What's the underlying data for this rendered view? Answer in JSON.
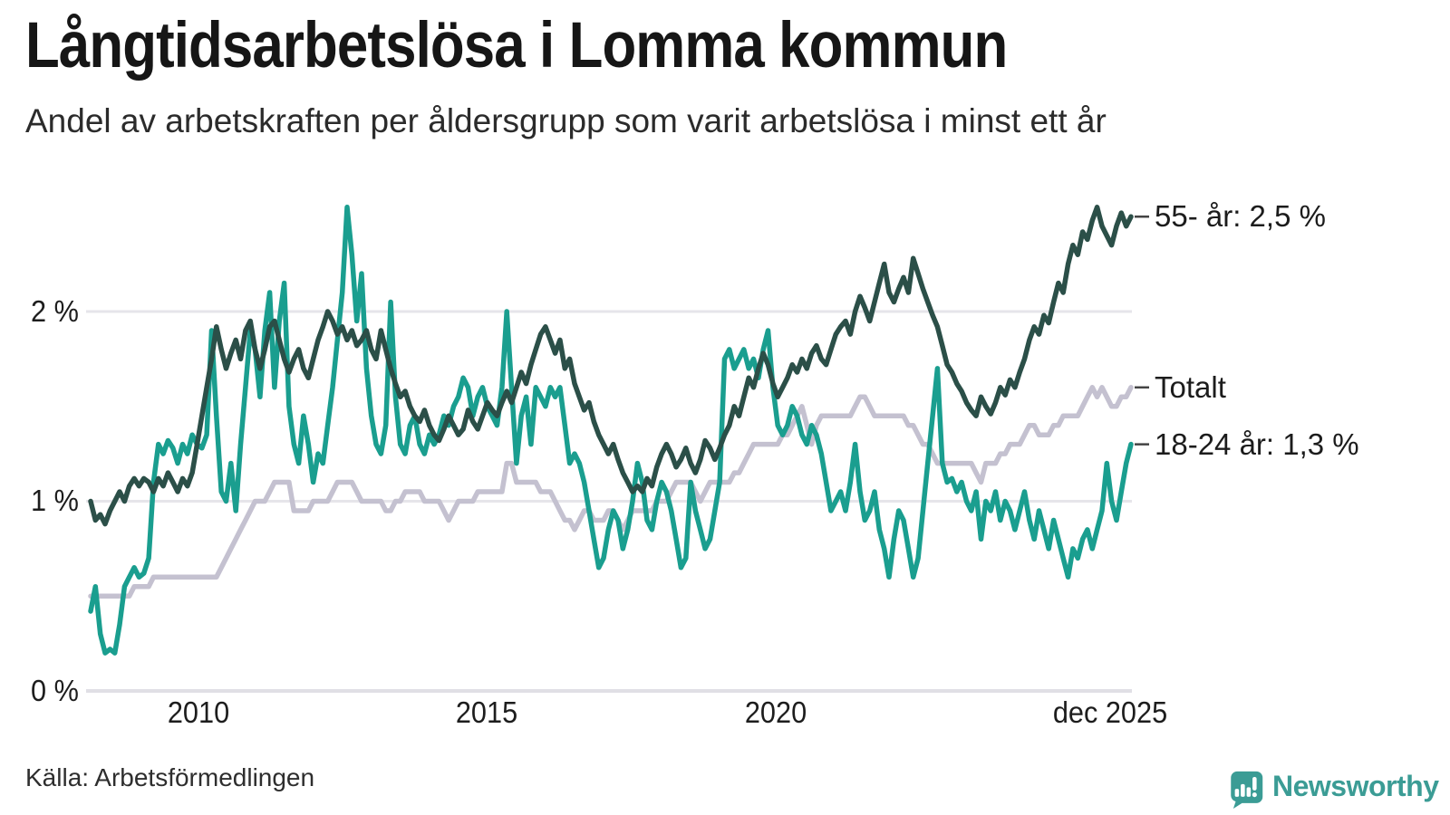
{
  "header": {
    "title": "Långtidsarbetslösa i Lomma kommun",
    "subtitle": "Andel av arbetskraften per åldersgrupp som varit arbetslösa i minst ett år"
  },
  "footer": {
    "source": "Källa: Arbetsförmedlingen",
    "brand": "Newsworthy"
  },
  "colors": {
    "series_55": "#2b4f48",
    "series_total": "#c4c1d0",
    "series_1824": "#1a9e8f",
    "gridline": "#e6e5ea",
    "zeroline": "#e0dfe5",
    "label_dash": "#444444",
    "brand_teal": "#3b9c95"
  },
  "chart_data": {
    "type": "line",
    "title": "Långtidsarbetslösa i Lomma kommun",
    "subtitle": "Andel av arbetskraften per åldersgrupp som varit arbetslösa i minst ett år",
    "unit": "%",
    "x_start": "2008-01",
    "x_end": "2025-12",
    "x_interval": "monthly",
    "ylim": [
      0,
      2.65
    ],
    "grid": "horizontal",
    "y_ticks": [
      "0 %",
      "1 %",
      "2 %"
    ],
    "y_tick_values": [
      0,
      1,
      2
    ],
    "x_tick_labels": [
      "2010",
      "2015",
      "2020",
      "dec 2025"
    ],
    "x_tick_month_index": [
      24,
      84,
      144,
      215
    ],
    "legend_position": "line-end-labels-right",
    "series": [
      {
        "name": "55- år",
        "end_label": "55- år: 2,5 %",
        "final_value": 2.5,
        "color": "#2b4f48",
        "values": [
          1.0,
          0.9,
          0.93,
          0.88,
          0.95,
          1.0,
          1.05,
          1.0,
          1.08,
          1.12,
          1.08,
          1.12,
          1.1,
          1.05,
          1.12,
          1.08,
          1.15,
          1.1,
          1.05,
          1.12,
          1.08,
          1.15,
          1.3,
          1.45,
          1.6,
          1.75,
          1.92,
          1.8,
          1.7,
          1.78,
          1.85,
          1.75,
          1.9,
          1.95,
          1.8,
          1.7,
          1.8,
          1.92,
          1.95,
          1.85,
          1.75,
          1.68,
          1.75,
          1.8,
          1.7,
          1.65,
          1.75,
          1.85,
          1.92,
          2.0,
          1.95,
          1.88,
          1.92,
          1.85,
          1.9,
          1.82,
          1.85,
          1.9,
          1.8,
          1.75,
          1.9,
          1.8,
          1.7,
          1.62,
          1.55,
          1.58,
          1.5,
          1.45,
          1.42,
          1.48,
          1.4,
          1.35,
          1.32,
          1.38,
          1.45,
          1.4,
          1.35,
          1.38,
          1.48,
          1.42,
          1.38,
          1.45,
          1.52,
          1.48,
          1.45,
          1.52,
          1.58,
          1.52,
          1.6,
          1.68,
          1.62,
          1.72,
          1.8,
          1.88,
          1.92,
          1.85,
          1.78,
          1.85,
          1.7,
          1.75,
          1.62,
          1.55,
          1.48,
          1.52,
          1.42,
          1.35,
          1.3,
          1.25,
          1.3,
          1.22,
          1.15,
          1.1,
          1.05,
          1.08,
          1.05,
          1.12,
          1.08,
          1.18,
          1.25,
          1.3,
          1.25,
          1.18,
          1.22,
          1.28,
          1.2,
          1.15,
          1.22,
          1.32,
          1.28,
          1.22,
          1.28,
          1.35,
          1.4,
          1.5,
          1.45,
          1.55,
          1.65,
          1.6,
          1.7,
          1.78,
          1.72,
          1.62,
          1.55,
          1.6,
          1.65,
          1.72,
          1.68,
          1.75,
          1.7,
          1.78,
          1.82,
          1.75,
          1.72,
          1.8,
          1.88,
          1.92,
          1.95,
          1.88,
          2.0,
          2.08,
          2.02,
          1.95,
          2.05,
          2.15,
          2.25,
          2.1,
          2.05,
          2.12,
          2.18,
          2.1,
          2.28,
          2.2,
          2.12,
          2.05,
          1.98,
          1.92,
          1.82,
          1.72,
          1.68,
          1.62,
          1.58,
          1.52,
          1.48,
          1.45,
          1.55,
          1.5,
          1.46,
          1.52,
          1.6,
          1.56,
          1.64,
          1.6,
          1.68,
          1.75,
          1.85,
          1.92,
          1.88,
          1.98,
          1.94,
          2.05,
          2.15,
          2.1,
          2.25,
          2.35,
          2.3,
          2.42,
          2.38,
          2.48,
          2.55,
          2.45,
          2.4,
          2.35,
          2.45,
          2.52,
          2.45,
          2.5
        ]
      },
      {
        "name": "Totalt",
        "end_label": "Totalt",
        "final_value": 1.6,
        "color": "#c4c1d0",
        "values": [
          0.5,
          0.5,
          0.5,
          0.5,
          0.5,
          0.5,
          0.5,
          0.5,
          0.5,
          0.55,
          0.55,
          0.55,
          0.55,
          0.6,
          0.6,
          0.6,
          0.6,
          0.6,
          0.6,
          0.6,
          0.6,
          0.6,
          0.6,
          0.6,
          0.6,
          0.6,
          0.6,
          0.65,
          0.7,
          0.75,
          0.8,
          0.85,
          0.9,
          0.95,
          1.0,
          1.0,
          1.0,
          1.05,
          1.1,
          1.1,
          1.1,
          1.1,
          0.95,
          0.95,
          0.95,
          0.95,
          1.0,
          1.0,
          1.0,
          1.0,
          1.05,
          1.1,
          1.1,
          1.1,
          1.1,
          1.05,
          1.0,
          1.0,
          1.0,
          1.0,
          1.0,
          0.95,
          0.95,
          1.0,
          1.0,
          1.05,
          1.05,
          1.05,
          1.05,
          1.0,
          1.0,
          1.0,
          1.0,
          0.95,
          0.9,
          0.95,
          1.0,
          1.0,
          1.0,
          1.0,
          1.05,
          1.05,
          1.05,
          1.05,
          1.05,
          1.05,
          1.2,
          1.2,
          1.1,
          1.1,
          1.1,
          1.1,
          1.1,
          1.05,
          1.05,
          1.05,
          1.0,
          0.95,
          0.9,
          0.9,
          0.85,
          0.9,
          0.95,
          0.95,
          0.9,
          0.9,
          0.9,
          0.95,
          0.95,
          0.9,
          0.85,
          0.9,
          0.95,
          0.95,
          0.95,
          0.95,
          0.95,
          1.0,
          1.0,
          1.0,
          1.05,
          1.1,
          1.1,
          1.1,
          1.1,
          1.05,
          1.0,
          1.05,
          1.1,
          1.1,
          1.1,
          1.1,
          1.1,
          1.15,
          1.15,
          1.2,
          1.25,
          1.3,
          1.3,
          1.3,
          1.3,
          1.3,
          1.3,
          1.35,
          1.35,
          1.4,
          1.45,
          1.5,
          1.4,
          1.3,
          1.4,
          1.45,
          1.45,
          1.45,
          1.45,
          1.45,
          1.45,
          1.45,
          1.5,
          1.55,
          1.55,
          1.5,
          1.45,
          1.45,
          1.45,
          1.45,
          1.45,
          1.45,
          1.45,
          1.4,
          1.4,
          1.35,
          1.3,
          1.3,
          1.25,
          1.2,
          1.2,
          1.2,
          1.2,
          1.2,
          1.2,
          1.2,
          1.2,
          1.15,
          1.1,
          1.2,
          1.2,
          1.2,
          1.25,
          1.25,
          1.3,
          1.3,
          1.3,
          1.35,
          1.4,
          1.4,
          1.35,
          1.35,
          1.35,
          1.4,
          1.4,
          1.45,
          1.45,
          1.45,
          1.45,
          1.5,
          1.55,
          1.6,
          1.55,
          1.6,
          1.55,
          1.5,
          1.5,
          1.55,
          1.55,
          1.6
        ]
      },
      {
        "name": "18-24 år",
        "end_label": "18-24 år: 1,3 %",
        "final_value": 1.3,
        "color": "#1a9e8f",
        "values": [
          0.42,
          0.55,
          0.3,
          0.2,
          0.22,
          0.2,
          0.35,
          0.55,
          0.6,
          0.65,
          0.6,
          0.62,
          0.7,
          1.1,
          1.3,
          1.25,
          1.32,
          1.28,
          1.2,
          1.3,
          1.25,
          1.35,
          1.3,
          1.28,
          1.35,
          1.9,
          1.45,
          1.05,
          1.0,
          1.2,
          0.95,
          1.3,
          1.6,
          1.9,
          1.8,
          1.55,
          1.9,
          2.1,
          1.6,
          1.95,
          2.15,
          1.5,
          1.3,
          1.2,
          1.45,
          1.3,
          1.1,
          1.25,
          1.2,
          1.4,
          1.6,
          1.85,
          2.1,
          2.55,
          2.3,
          1.95,
          2.2,
          1.7,
          1.45,
          1.3,
          1.25,
          1.4,
          2.05,
          1.55,
          1.3,
          1.25,
          1.4,
          1.45,
          1.3,
          1.25,
          1.35,
          1.3,
          1.35,
          1.45,
          1.4,
          1.5,
          1.55,
          1.65,
          1.6,
          1.45,
          1.55,
          1.6,
          1.5,
          1.45,
          1.4,
          1.6,
          2.0,
          1.6,
          1.2,
          1.45,
          1.55,
          1.3,
          1.6,
          1.55,
          1.5,
          1.6,
          1.55,
          1.6,
          1.4,
          1.2,
          1.25,
          1.2,
          1.1,
          0.95,
          0.8,
          0.65,
          0.7,
          0.85,
          0.95,
          0.9,
          0.75,
          0.85,
          1.0,
          1.2,
          1.1,
          0.9,
          0.85,
          1.0,
          1.1,
          1.05,
          0.95,
          0.8,
          0.65,
          0.7,
          1.1,
          0.95,
          0.85,
          0.75,
          0.8,
          0.95,
          1.1,
          1.75,
          1.8,
          1.7,
          1.75,
          1.8,
          1.7,
          1.75,
          1.65,
          1.8,
          1.9,
          1.6,
          1.4,
          1.35,
          1.4,
          1.5,
          1.45,
          1.35,
          1.3,
          1.4,
          1.35,
          1.25,
          1.1,
          0.95,
          1.0,
          1.05,
          0.95,
          1.1,
          1.3,
          1.05,
          0.9,
          0.95,
          1.05,
          0.85,
          0.75,
          0.6,
          0.8,
          0.95,
          0.9,
          0.75,
          0.6,
          0.7,
          0.95,
          1.2,
          1.45,
          1.7,
          1.2,
          1.1,
          1.12,
          1.05,
          1.1,
          1.0,
          0.95,
          1.05,
          0.8,
          1.0,
          0.95,
          1.05,
          0.9,
          1.0,
          0.95,
          0.85,
          0.95,
          1.05,
          0.9,
          0.8,
          0.95,
          0.85,
          0.75,
          0.9,
          0.8,
          0.7,
          0.6,
          0.75,
          0.7,
          0.8,
          0.85,
          0.75,
          0.85,
          0.95,
          1.2,
          1.0,
          0.9,
          1.05,
          1.2,
          1.3
        ]
      }
    ]
  }
}
